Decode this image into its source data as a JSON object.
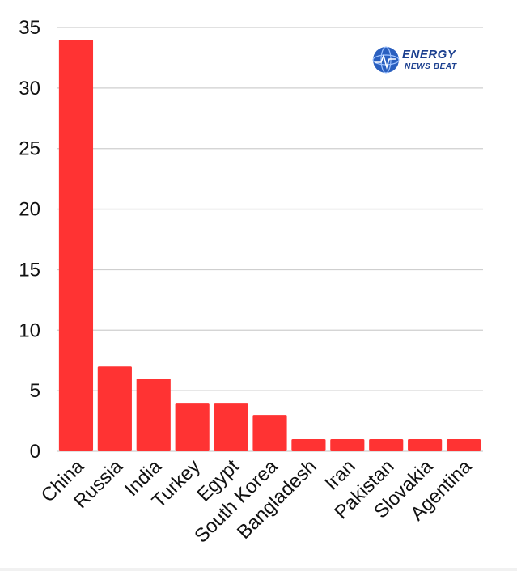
{
  "logo": {
    "word1": "ENERGY",
    "word2": "NEWS BEAT"
  },
  "colors": {
    "bar": "#ff3333",
    "grid": "#cfcfcf",
    "text": "#111111",
    "logo": "#1b3f8f"
  },
  "chart_data": {
    "type": "bar",
    "categories": [
      "China",
      "Russia",
      "India",
      "Turkey",
      "Egypt",
      "South Korea",
      "Bangladesh",
      "Iran",
      "Pakistan",
      "Slovakia",
      "Agentina"
    ],
    "values": [
      34,
      7,
      6,
      4,
      4,
      3,
      1,
      1,
      1,
      1,
      1
    ],
    "title": "",
    "xlabel": "",
    "ylabel": "",
    "ylim": [
      0,
      35
    ],
    "yticks": [
      0,
      5,
      10,
      15,
      20,
      25,
      30,
      35
    ],
    "grid": true,
    "legend": "none"
  }
}
